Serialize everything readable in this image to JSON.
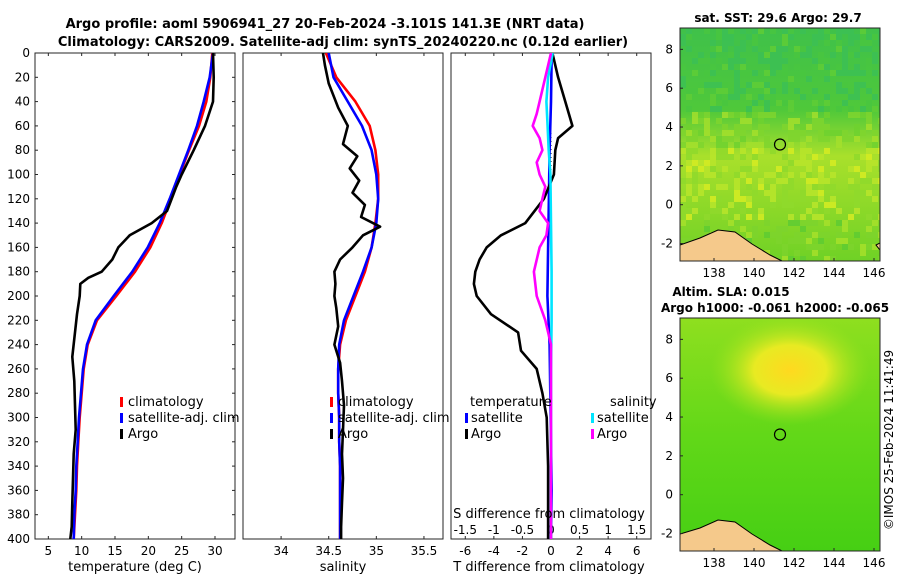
{
  "title_line1": "Argo profile: aoml 5906941_27 20-Feb-2024 -3.101S 141.3E (NRT data)",
  "title_line2": "Climatology: CARS2009. Satellite-adj clim: synTS_20240220.nc (0.12d earlier)",
  "colors": {
    "climatology": "#ff0000",
    "satellite": "#0000ff",
    "argo": "#000000",
    "sat_cyan": "#00e5ff",
    "argo_magenta": "#ff00ff"
  },
  "chart_data": [
    {
      "id": "temperature",
      "type": "line",
      "xlabel": "temperature (deg C)",
      "ylabel": "",
      "xlim": [
        3,
        33
      ],
      "ylim": [
        0,
        400
      ],
      "xticks": [
        5,
        10,
        15,
        20,
        25,
        30
      ],
      "yticks": [
        0,
        20,
        40,
        60,
        80,
        100,
        120,
        140,
        160,
        180,
        200,
        220,
        240,
        260,
        280,
        300,
        320,
        340,
        360,
        380,
        400
      ],
      "legend": [
        "climatology",
        "satellite-adj. clim",
        "Argo"
      ],
      "series": [
        {
          "name": "climatology",
          "color": "#ff0000",
          "depth": [
            0,
            20,
            40,
            60,
            80,
            100,
            120,
            140,
            160,
            180,
            200,
            220,
            240,
            260,
            280,
            300,
            320,
            340,
            360,
            380,
            400
          ],
          "values": [
            29.6,
            29.3,
            28.7,
            27.6,
            26.1,
            24.7,
            23.4,
            22.0,
            20.3,
            18.0,
            15.2,
            12.3,
            10.9,
            10.3,
            10.0,
            9.7,
            9.5,
            9.3,
            9.2,
            9.0,
            8.8
          ]
        },
        {
          "name": "satellite-adj. clim",
          "color": "#0000ff",
          "depth": [
            0,
            20,
            40,
            60,
            80,
            100,
            120,
            140,
            160,
            180,
            200,
            220,
            240,
            260,
            280,
            300,
            320,
            340,
            360,
            380,
            400
          ],
          "values": [
            29.7,
            29.2,
            28.3,
            27.3,
            26.0,
            24.6,
            23.2,
            21.7,
            19.9,
            17.6,
            14.8,
            12.1,
            10.8,
            10.2,
            9.9,
            9.6,
            9.4,
            9.2,
            9.1,
            8.9,
            8.8
          ]
        },
        {
          "name": "Argo",
          "color": "#000000",
          "depth": [
            0,
            20,
            40,
            60,
            80,
            100,
            110,
            130,
            140,
            150,
            160,
            170,
            180,
            185,
            190,
            200,
            215,
            230,
            250,
            270,
            290,
            310,
            330,
            350,
            370,
            390,
            400
          ],
          "values": [
            29.7,
            29.8,
            29.7,
            28.5,
            26.8,
            25.0,
            24.2,
            22.8,
            20.5,
            17.2,
            15.5,
            14.6,
            13.0,
            11.0,
            9.8,
            9.7,
            9.3,
            9.0,
            8.6,
            8.9,
            9.0,
            9.1,
            8.8,
            8.7,
            8.6,
            8.5,
            8.3
          ]
        }
      ]
    },
    {
      "id": "salinity",
      "type": "line",
      "xlabel": "salinity",
      "xlim": [
        33.6,
        35.7
      ],
      "ylim": [
        0,
        400
      ],
      "xticks": [
        34,
        34.5,
        35,
        35.5
      ],
      "legend": [
        "climatology",
        "satellite-adj. clim",
        "Argo"
      ],
      "series": [
        {
          "name": "climatology",
          "color": "#ff0000",
          "depth": [
            0,
            20,
            40,
            60,
            80,
            100,
            120,
            140,
            160,
            180,
            200,
            220,
            240,
            260,
            280,
            300,
            320,
            340,
            360,
            380,
            400
          ],
          "values": [
            34.47,
            34.58,
            34.78,
            34.93,
            34.99,
            35.02,
            35.02,
            34.99,
            34.95,
            34.88,
            34.78,
            34.68,
            34.62,
            34.6,
            34.6,
            34.61,
            34.61,
            34.62,
            34.62,
            34.62,
            34.62
          ]
        },
        {
          "name": "satellite-adj. clim",
          "color": "#0000ff",
          "depth": [
            0,
            20,
            40,
            60,
            80,
            100,
            120,
            140,
            160,
            180,
            200,
            220,
            240,
            260,
            280,
            300,
            320,
            340,
            360,
            380,
            400
          ],
          "values": [
            34.5,
            34.55,
            34.7,
            34.85,
            34.95,
            35.0,
            35.02,
            35.0,
            34.95,
            34.86,
            34.76,
            34.66,
            34.61,
            34.6,
            34.6,
            34.61,
            34.61,
            34.62,
            34.62,
            34.62,
            34.62
          ]
        },
        {
          "name": "Argo",
          "color": "#000000",
          "depth": [
            0,
            10,
            25,
            45,
            60,
            75,
            85,
            95,
            105,
            115,
            125,
            135,
            143,
            150,
            160,
            170,
            180,
            190,
            200,
            210,
            225,
            240,
            255,
            270,
            290,
            310,
            330,
            350,
            370,
            390,
            400
          ],
          "values": [
            34.44,
            34.46,
            34.5,
            34.6,
            34.7,
            34.65,
            34.8,
            34.72,
            34.82,
            34.75,
            34.88,
            34.84,
            35.04,
            34.86,
            34.75,
            34.62,
            34.56,
            34.57,
            34.56,
            34.58,
            34.6,
            34.56,
            34.62,
            34.64,
            34.66,
            34.65,
            34.64,
            34.65,
            34.64,
            34.63,
            34.63
          ]
        }
      ]
    },
    {
      "id": "differences",
      "type": "line",
      "xlabel": "T difference from climatology",
      "xlabel_top": "S difference from climatology",
      "xlim": [
        -7,
        7
      ],
      "ylim": [
        0,
        400
      ],
      "xticks": [
        -6,
        -4,
        -2,
        0,
        2,
        4,
        6
      ],
      "xticks_s": [
        -1.5,
        -1,
        -0.5,
        0,
        0.5,
        1,
        1.5
      ],
      "legend_titles": [
        "temperature",
        "salinity"
      ],
      "legend": [
        "satellite",
        "Argo",
        "satellite",
        "Argo"
      ],
      "series": [
        {
          "name": "T satellite",
          "color": "#0000ff",
          "depth": [
            0,
            40,
            80,
            120,
            160,
            200,
            240,
            280,
            320,
            360,
            400
          ],
          "values": [
            0.05,
            0.0,
            -0.1,
            -0.15,
            -0.2,
            -0.25,
            -0.1,
            -0.05,
            0.0,
            0.05,
            0.0
          ]
        },
        {
          "name": "T Argo",
          "color": "#000000",
          "depth": [
            0,
            20,
            40,
            60,
            70,
            80,
            100,
            120,
            140,
            150,
            160,
            170,
            180,
            190,
            200,
            215,
            230,
            245,
            260,
            280,
            300,
            340,
            400
          ],
          "values": [
            0.1,
            0.5,
            1.0,
            1.5,
            0.5,
            0.3,
            0.2,
            -0.5,
            -1.8,
            -3.5,
            -4.5,
            -5.0,
            -5.3,
            -5.4,
            -5.2,
            -4.2,
            -2.3,
            -2.1,
            -1.0,
            -0.6,
            -0.3,
            -0.2,
            -0.2
          ]
        },
        {
          "name": "S satellite",
          "color": "#00e5ff",
          "depth": [
            0,
            20,
            40,
            60,
            80,
            100,
            140,
            180,
            220,
            260,
            300,
            340,
            400
          ],
          "values": [
            0.03,
            -0.05,
            -0.08,
            -0.06,
            -0.04,
            -0.01,
            0.0,
            0.01,
            0.01,
            0.0,
            0.0,
            0.0,
            0.0
          ]
        },
        {
          "name": "S Argo",
          "color": "#ff00ff",
          "depth": [
            0,
            20,
            40,
            50,
            60,
            70,
            80,
            90,
            100,
            110,
            120,
            130,
            140,
            150,
            160,
            180,
            200,
            220,
            240,
            260,
            280,
            300,
            340,
            400
          ],
          "values": [
            0.0,
            -0.1,
            -0.2,
            -0.25,
            -0.32,
            -0.2,
            -0.15,
            -0.25,
            -0.2,
            -0.1,
            -0.15,
            -0.2,
            -0.05,
            -0.08,
            -0.2,
            -0.3,
            -0.25,
            -0.1,
            0.0,
            0.0,
            0.0,
            0.0,
            0.0,
            0.0
          ]
        }
      ]
    },
    {
      "id": "sst_map",
      "type": "heatmap",
      "title": "sat. SST: 29.6 Argo: 29.7",
      "xticks": [
        138,
        140,
        142,
        144,
        146
      ],
      "yticks": [
        -2,
        0,
        2,
        4,
        6,
        8
      ],
      "xlim": [
        136.3,
        146.3
      ],
      "ylim": [
        -2.9,
        9.1
      ],
      "marker": [
        141.3,
        3.1
      ]
    },
    {
      "id": "sla_map",
      "type": "heatmap",
      "title_line1": "Altim. SLA: 0.015",
      "title_line2": "Argo h1000: -0.061 h2000: -0.065",
      "xticks": [
        138,
        140,
        142,
        144,
        146
      ],
      "yticks": [
        -2,
        0,
        2,
        4,
        6,
        8
      ],
      "xlim": [
        136.3,
        146.3
      ],
      "ylim": [
        -2.9,
        9.1
      ],
      "marker": [
        141.3,
        3.1
      ]
    }
  ],
  "copyright": "©IMOS 25-Feb-2024 11:41:49"
}
